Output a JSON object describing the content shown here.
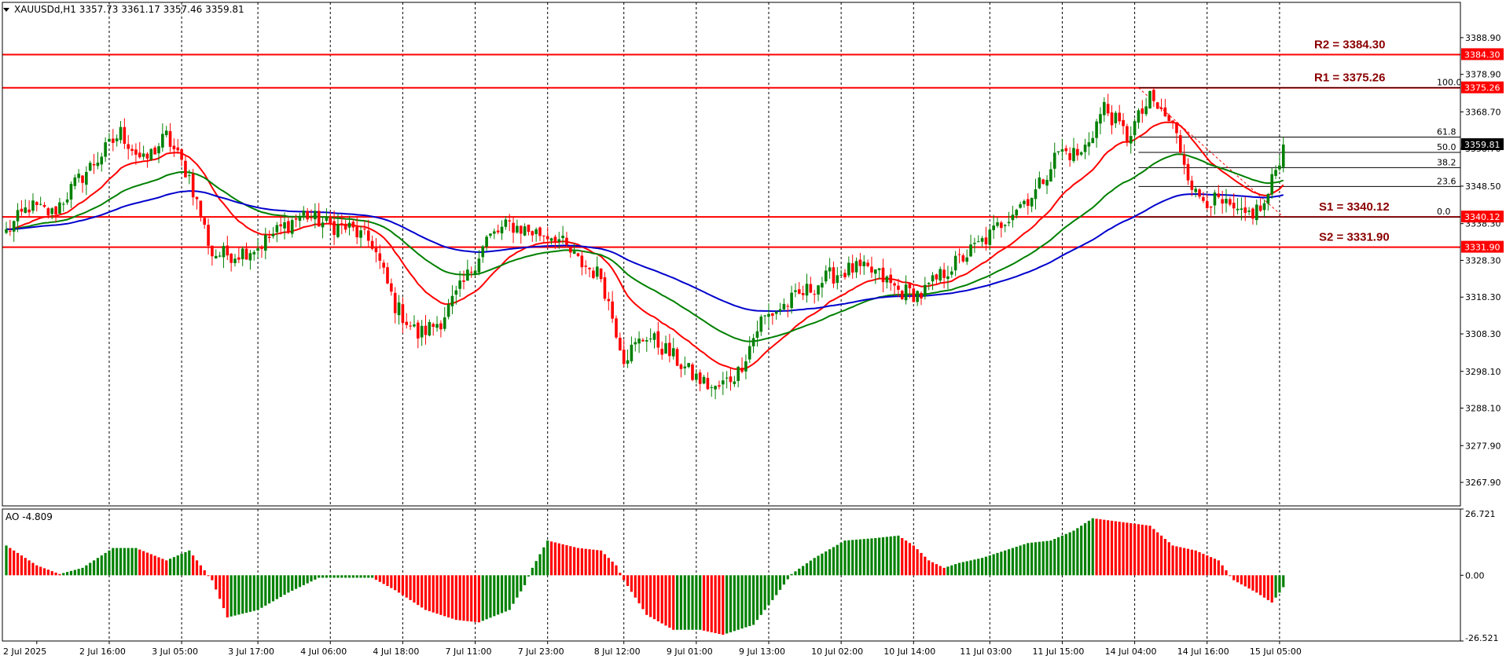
{
  "header": {
    "symbol_line": "XAUUSDd,H1  3357.73 3361.17 3357.46 3359.81",
    "ao_line": "AO -4.809"
  },
  "colors": {
    "bull": "#008000",
    "bear": "#ff0000",
    "ma_fast": "#ff0000",
    "ma_mid": "#008000",
    "ma_slow": "#0000cd",
    "level": "#ff0000",
    "level_text": "#8b0000",
    "fib": "#000000"
  },
  "chart_data": {
    "type": "candlestick",
    "symbol": "XAUUSDd",
    "timeframe": "H1",
    "last_price": 3359.81,
    "price_axis": {
      "ylim": [
        3261.5,
        3398.5
      ],
      "ticks": [
        "3388.90",
        "3378.90",
        "3368.70",
        "3358.70",
        "3348.50",
        "3338.30",
        "3328.30",
        "3318.30",
        "3308.30",
        "3298.10",
        "3288.10",
        "3277.90",
        "3267.90"
      ]
    },
    "time_axis": {
      "ticks": [
        "2 Jul 2025",
        "2 Jul 16:00",
        "3 Jul 05:00",
        "3 Jul 17:00",
        "4 Jul 06:00",
        "4 Jul 18:00",
        "7 Jul 11:00",
        "7 Jul 23:00",
        "8 Jul 12:00",
        "9 Jul 01:00",
        "9 Jul 13:00",
        "10 Jul 02:00",
        "10 Jul 14:00",
        "11 Jul 03:00",
        "11 Jul 15:00",
        "14 Jul 04:00",
        "14 Jul 16:00",
        "15 Jul 05:00"
      ]
    },
    "levels": [
      {
        "name": "R2",
        "label": "R2 = 3384.30",
        "tag": "3384.30",
        "value": 3384.3
      },
      {
        "name": "R1",
        "label": "R1 = 3375.26",
        "tag": "3375.26",
        "value": 3375.26
      },
      {
        "name": "S1",
        "label": "S1 = 3340.12",
        "tag": "3340.12",
        "value": 3340.12
      },
      {
        "name": "S2",
        "label": "S2 = 3331.90",
        "tag": "3331.90",
        "value": 3331.9
      }
    ],
    "fibonacci": {
      "high": 3375.26,
      "low": 3340.12,
      "levels": [
        {
          "label": "100.0",
          "value": 3375.26
        },
        {
          "label": "61.8",
          "value": 3361.84
        },
        {
          "label": "50.0",
          "value": 3357.69
        },
        {
          "label": "38.2",
          "value": 3353.54
        },
        {
          "label": "23.6",
          "value": 3348.41
        },
        {
          "label": "0.0",
          "value": 3340.12
        }
      ]
    },
    "price_anchors": [
      [
        0,
        3336
      ],
      [
        6,
        3343
      ],
      [
        12,
        3341
      ],
      [
        18,
        3349
      ],
      [
        24,
        3356
      ],
      [
        30,
        3363
      ],
      [
        36,
        3355
      ],
      [
        42,
        3362
      ],
      [
        48,
        3351
      ],
      [
        54,
        3330
      ],
      [
        60,
        3330
      ],
      [
        66,
        3332
      ],
      [
        72,
        3337
      ],
      [
        78,
        3341
      ],
      [
        84,
        3338
      ],
      [
        90,
        3337
      ],
      [
        96,
        3333
      ],
      [
        102,
        3316
      ],
      [
        108,
        3308
      ],
      [
        114,
        3312
      ],
      [
        120,
        3322
      ],
      [
        126,
        3334
      ],
      [
        132,
        3338
      ],
      [
        138,
        3336
      ],
      [
        144,
        3335
      ],
      [
        150,
        3328
      ],
      [
        156,
        3324
      ],
      [
        162,
        3302
      ],
      [
        168,
        3308
      ],
      [
        174,
        3303
      ],
      [
        180,
        3297
      ],
      [
        186,
        3293
      ],
      [
        192,
        3298
      ],
      [
        198,
        3312
      ],
      [
        204,
        3316
      ],
      [
        210,
        3320
      ],
      [
        216,
        3324
      ],
      [
        222,
        3326
      ],
      [
        228,
        3325
      ],
      [
        234,
        3320
      ],
      [
        240,
        3319
      ],
      [
        246,
        3325
      ],
      [
        252,
        3330
      ],
      [
        258,
        3335
      ],
      [
        264,
        3342
      ],
      [
        270,
        3347
      ],
      [
        276,
        3358
      ],
      [
        282,
        3357
      ],
      [
        288,
        3370
      ],
      [
        294,
        3362
      ],
      [
        300,
        3372
      ],
      [
        306,
        3365
      ],
      [
        312,
        3346
      ],
      [
        318,
        3344
      ],
      [
        324,
        3340
      ],
      [
        330,
        3343
      ],
      [
        335,
        3359.81
      ]
    ],
    "ao": {
      "name": "AO",
      "current": -4.809,
      "ylim": [
        -26.521,
        26.721
      ],
      "ticks": [
        "26.721",
        "0.00",
        "-26.521"
      ],
      "anchors": [
        [
          0,
          12
        ],
        [
          8,
          4
        ],
        [
          14,
          0.5
        ],
        [
          20,
          3
        ],
        [
          28,
          11
        ],
        [
          34,
          11
        ],
        [
          42,
          6
        ],
        [
          48,
          10
        ],
        [
          54,
          -2
        ],
        [
          58,
          -17
        ],
        [
          66,
          -14
        ],
        [
          74,
          -7
        ],
        [
          82,
          -1
        ],
        [
          90,
          -1
        ],
        [
          96,
          -1
        ],
        [
          102,
          -6
        ],
        [
          110,
          -14
        ],
        [
          118,
          -18
        ],
        [
          124,
          -19
        ],
        [
          132,
          -14
        ],
        [
          136,
          -4
        ],
        [
          138,
          3
        ],
        [
          142,
          14
        ],
        [
          150,
          11
        ],
        [
          156,
          10
        ],
        [
          160,
          4
        ],
        [
          162,
          -2
        ],
        [
          168,
          -16
        ],
        [
          175,
          -22
        ],
        [
          182,
          -22
        ],
        [
          188,
          -24
        ],
        [
          196,
          -20
        ],
        [
          202,
          -8
        ],
        [
          206,
          0.5
        ],
        [
          212,
          7
        ],
        [
          220,
          14
        ],
        [
          228,
          15
        ],
        [
          234,
          16
        ],
        [
          238,
          12
        ],
        [
          242,
          6
        ],
        [
          246,
          3
        ],
        [
          250,
          5
        ],
        [
          256,
          7
        ],
        [
          262,
          10
        ],
        [
          268,
          13
        ],
        [
          274,
          14
        ],
        [
          280,
          18
        ],
        [
          285,
          23
        ],
        [
          290,
          22
        ],
        [
          295,
          21
        ],
        [
          300,
          20
        ],
        [
          306,
          12
        ],
        [
          312,
          10
        ],
        [
          318,
          6
        ],
        [
          322,
          -2
        ],
        [
          328,
          -7
        ],
        [
          332,
          -11
        ],
        [
          335,
          -5
        ]
      ]
    },
    "moving_averages": [
      {
        "id": "ma_fast",
        "period": 21
      },
      {
        "id": "ma_mid",
        "period": 50
      },
      {
        "id": "ma_slow",
        "period": 100
      }
    ]
  }
}
